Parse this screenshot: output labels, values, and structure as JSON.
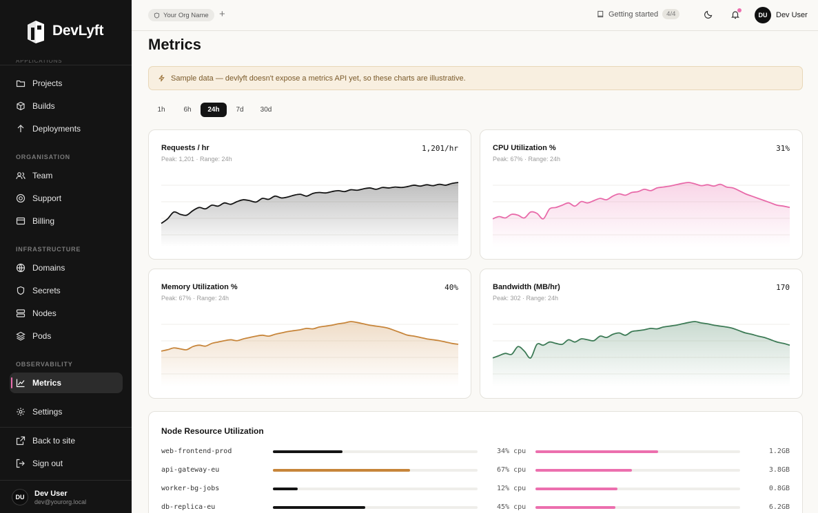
{
  "brand": {
    "name": "DevLyft"
  },
  "sidebar": {
    "cut_section": "APPLICATIONS",
    "sections": {
      "organisation": "ORGANISATION",
      "infrastructure": "INFRASTRUCTURE",
      "observability": "OBSERVABILITY"
    },
    "items": {
      "projects": "Projects",
      "builds": "Builds",
      "deployments": "Deployments",
      "team": "Team",
      "support": "Support",
      "billing": "Billing",
      "domains": "Domains",
      "secrets": "Secrets",
      "nodes": "Nodes",
      "pods": "Pods",
      "metrics": "Metrics",
      "settings": "Settings",
      "back": "Back to site",
      "signout": "Sign out"
    },
    "user": {
      "initials": "DU",
      "name": "Dev User",
      "email": "dev@yourorg.local"
    }
  },
  "topbar": {
    "org": "Your Org Name",
    "plus": "+",
    "getting_started": "Getting started",
    "progress": "4/4",
    "user_initials": "DU",
    "user_name": "Dev User"
  },
  "page": {
    "title": "Metrics",
    "banner": "Sample data — devlyft doesn't expose a metrics API yet, so these charts are illustrative."
  },
  "ranges": [
    "1h",
    "6h",
    "24h",
    "7d",
    "30d"
  ],
  "active_range": "24h",
  "colors": {
    "accent_pink": "#ec6fae",
    "requests": "#141414",
    "cpu": "#e86aa9",
    "memory": "#c7853a",
    "bandwidth": "#3c7a55"
  },
  "cards": {
    "requests": {
      "title": "Requests / hr",
      "subtitle": "Peak: 1,201 · Range: 24h",
      "value": "1,201/hr"
    },
    "cpu": {
      "title": "CPU Utilization %",
      "subtitle": "Peak: 67% · Range: 24h",
      "value": "31%"
    },
    "memory": {
      "title": "Memory Utilization %",
      "subtitle": "Peak: 67% · Range: 24h",
      "value": "40%"
    },
    "bandwidth": {
      "title": "Bandwidth (MB/hr)",
      "subtitle": "Peak: 302 · Range: 24h",
      "value": "170"
    }
  },
  "chart_data": [
    {
      "type": "area",
      "title": "Requests / hr",
      "color": "#141414",
      "values": [
        0.1,
        0.2,
        0.35,
        0.3,
        0.28,
        0.38,
        0.45,
        0.42,
        0.5,
        0.48,
        0.55,
        0.52,
        0.58,
        0.62,
        0.6,
        0.57,
        0.65,
        0.63,
        0.7,
        0.66,
        0.68,
        0.72,
        0.74,
        0.7,
        0.76,
        0.78,
        0.77,
        0.8,
        0.82,
        0.8,
        0.84,
        0.83,
        0.86,
        0.88,
        0.85,
        0.89,
        0.88,
        0.9,
        0.89,
        0.91,
        0.94,
        0.92,
        0.95,
        0.93,
        0.96,
        0.94,
        0.98,
        1.0
      ]
    },
    {
      "type": "area",
      "title": "CPU Utilization %",
      "color": "#e86aa9",
      "values": [
        0.2,
        0.25,
        0.22,
        0.3,
        0.28,
        0.22,
        0.35,
        0.32,
        0.2,
        0.42,
        0.45,
        0.5,
        0.55,
        0.48,
        0.58,
        0.55,
        0.6,
        0.65,
        0.62,
        0.7,
        0.75,
        0.72,
        0.78,
        0.8,
        0.85,
        0.82,
        0.88,
        0.9,
        0.92,
        0.95,
        0.98,
        1.0,
        0.97,
        0.93,
        0.95,
        0.92,
        0.96,
        0.9,
        0.88,
        0.82,
        0.75,
        0.7,
        0.65,
        0.6,
        0.55,
        0.5,
        0.48,
        0.45
      ]
    },
    {
      "type": "area",
      "title": "Memory Utilization %",
      "color": "#c7853a",
      "values": [
        0.35,
        0.38,
        0.42,
        0.4,
        0.38,
        0.45,
        0.48,
        0.46,
        0.52,
        0.55,
        0.58,
        0.6,
        0.58,
        0.62,
        0.65,
        0.68,
        0.7,
        0.68,
        0.72,
        0.75,
        0.78,
        0.8,
        0.82,
        0.85,
        0.84,
        0.88,
        0.9,
        0.92,
        0.95,
        0.97,
        1.0,
        0.98,
        0.95,
        0.92,
        0.9,
        0.88,
        0.85,
        0.8,
        0.75,
        0.7,
        0.68,
        0.65,
        0.62,
        0.6,
        0.58,
        0.55,
        0.52,
        0.5
      ]
    },
    {
      "type": "area",
      "title": "Bandwidth (MB/hr)",
      "color": "#3c7a55",
      "values": [
        0.2,
        0.25,
        0.3,
        0.28,
        0.45,
        0.35,
        0.2,
        0.5,
        0.48,
        0.55,
        0.52,
        0.5,
        0.6,
        0.55,
        0.62,
        0.6,
        0.58,
        0.68,
        0.65,
        0.72,
        0.75,
        0.7,
        0.78,
        0.8,
        0.82,
        0.85,
        0.84,
        0.88,
        0.9,
        0.92,
        0.95,
        0.98,
        1.0,
        0.97,
        0.95,
        0.92,
        0.9,
        0.88,
        0.85,
        0.8,
        0.75,
        0.72,
        0.68,
        0.65,
        0.6,
        0.55,
        0.52,
        0.48
      ]
    }
  ],
  "nodes": {
    "title": "Node Resource Utilization",
    "rows": [
      {
        "name": "web-frontend-prod",
        "primary": 0.34,
        "primary_color": "#141414",
        "cpu": "34% cpu",
        "cpu_fill": 0.6,
        "mem": "1.2GB"
      },
      {
        "name": "api-gateway-eu",
        "primary": 0.67,
        "primary_color": "#c7853a",
        "cpu": "67% cpu",
        "cpu_fill": 0.47,
        "mem": "3.8GB"
      },
      {
        "name": "worker-bg-jobs",
        "primary": 0.12,
        "primary_color": "#141414",
        "cpu": "12% cpu",
        "cpu_fill": 0.4,
        "mem": "0.8GB"
      },
      {
        "name": "db-replica-eu",
        "primary": 0.45,
        "primary_color": "#141414",
        "cpu": "45% cpu",
        "cpu_fill": 0.39,
        "mem": "6.2GB"
      }
    ]
  }
}
